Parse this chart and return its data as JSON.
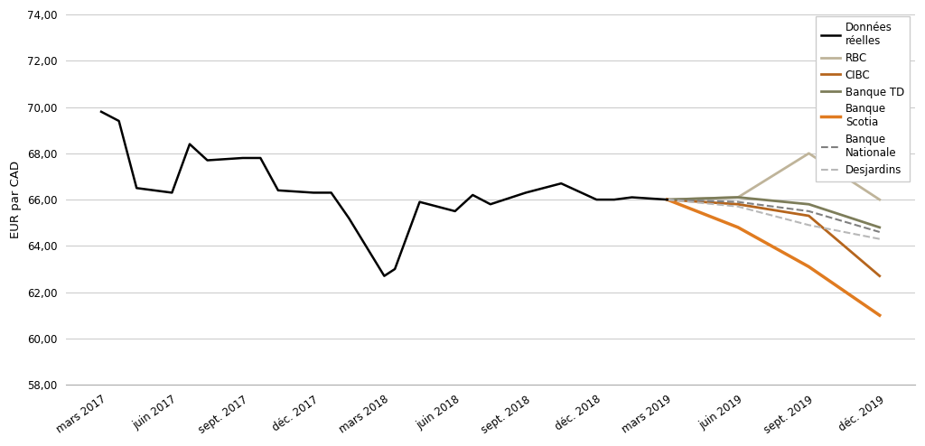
{
  "ylabel": "EUR par CAD",
  "ylim": [
    58.0,
    74.0
  ],
  "yticks": [
    58.0,
    60.0,
    62.0,
    64.0,
    66.0,
    68.0,
    70.0,
    72.0,
    74.0
  ],
  "x_labels": [
    "mars 2017",
    "juin 2017",
    "sept. 2017",
    "déc. 2017",
    "mars 2018",
    "juin 2018",
    "sept. 2018",
    "déc. 2018",
    "mars 2019",
    "juin 2019",
    "sept. 2019",
    "déc. 2019"
  ],
  "donnees_reelles": {
    "x": [
      0,
      0.25,
      0.5,
      1,
      1.25,
      1.5,
      2,
      2.25,
      2.5,
      3,
      3.25,
      3.5,
      4,
      4.15,
      4.5,
      5,
      5.25,
      5.5,
      6,
      6.25,
      6.5,
      7,
      7.25,
      7.5,
      8
    ],
    "y": [
      69.8,
      69.4,
      66.5,
      66.3,
      68.4,
      67.7,
      67.8,
      67.8,
      66.4,
      66.3,
      66.3,
      65.2,
      62.7,
      63.0,
      65.9,
      65.5,
      66.2,
      65.8,
      66.3,
      66.5,
      66.7,
      66.0,
      66.0,
      66.1,
      66.0
    ],
    "color": "#000000",
    "linewidth": 1.8,
    "linestyle": "solid",
    "label": "Données\nréelles"
  },
  "forecasts": [
    {
      "name": "RBC",
      "x": [
        8,
        9,
        10,
        11
      ],
      "y": [
        66.0,
        66.1,
        68.0,
        66.0
      ],
      "color": "#bfb49a",
      "linewidth": 2.0,
      "linestyle": "solid"
    },
    {
      "name": "CIBC",
      "x": [
        8,
        9,
        10,
        11
      ],
      "y": [
        66.0,
        65.8,
        65.3,
        62.7
      ],
      "color": "#b5651d",
      "linewidth": 2.0,
      "linestyle": "solid"
    },
    {
      "name": "Banque TD",
      "x": [
        8,
        9,
        10,
        11
      ],
      "y": [
        66.0,
        66.1,
        65.8,
        64.8
      ],
      "color": "#7d7d5a",
      "linewidth": 2.0,
      "linestyle": "solid"
    },
    {
      "name": "Banque\nScotia",
      "x": [
        8,
        9,
        10,
        11
      ],
      "y": [
        66.0,
        64.8,
        63.1,
        61.0
      ],
      "color": "#e07b20",
      "linewidth": 2.5,
      "linestyle": "solid"
    },
    {
      "name": "Banque\nNationale",
      "x": [
        8,
        9,
        10,
        11
      ],
      "y": [
        66.0,
        65.9,
        65.5,
        64.6
      ],
      "color": "#808080",
      "linewidth": 1.5,
      "linestyle": "dashed"
    },
    {
      "name": "Desjardins",
      "x": [
        8,
        9,
        10,
        11
      ],
      "y": [
        66.0,
        65.7,
        64.9,
        64.3
      ],
      "color": "#b8b8b8",
      "linewidth": 1.5,
      "linestyle": "dashed"
    }
  ],
  "background_color": "#ffffff",
  "grid_color": "#c8c8c8",
  "tick_fontsize": 8.5,
  "label_fontsize": 9.5,
  "legend_fontsize": 8.5
}
